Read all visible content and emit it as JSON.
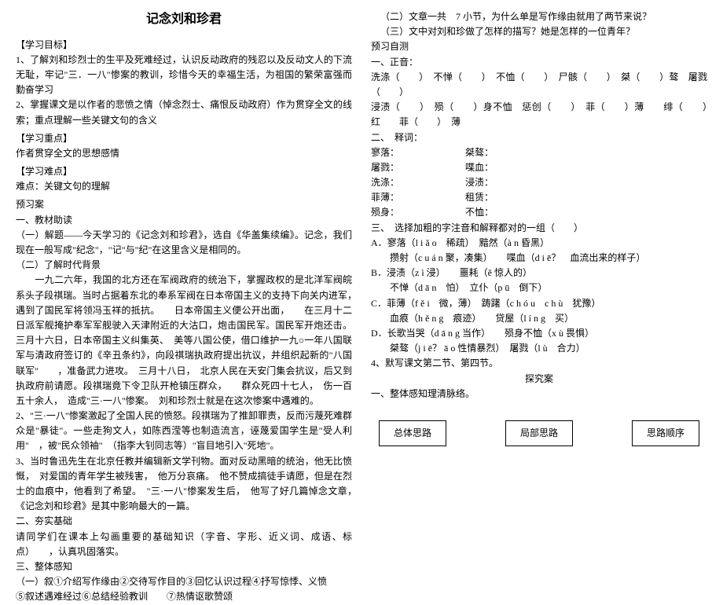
{
  "title": "记念刘和珍君",
  "left": {
    "h_objective": "【学习目标】",
    "obj1": "1、了解刘和珍烈士的生平及死难经过，认识反动政府的残忍以及反动文人的下流无耻，牢记\"三．一八\"惨案的教训，珍惜今天的幸福生活，为祖国的繁荣富强而勤奋学习",
    "obj2": "2、掌握课文是以作者的悲愤之情（悼念烈士、痛恨反动政府）作为贯穿全文的线索；重点理解一些关键文句的含义",
    "h_focus": "【学习重点】",
    "focus": "作者贯穿全文的思想感情",
    "h_diff": "【学习难点】",
    "diff": "难点：关键文句的理解",
    "h_preview": "预习案",
    "h_material": "一、教材助读",
    "mat1": "（一）解题——今天学习的《记念刘和珍君》，选自《华盖集续编》。记念，我们现在一般写成\"纪念\"，\"记\"与\"纪\"在这里含义是相同的。",
    "mat2": "（二）了解时代背景",
    "bg1": "　　一九二六年，我国的北方还在军阀政府的统治下，掌握政权的是北洋军阀皖系头子段祺瑞。当时占据着东北的奉系军阀在日本帝国主义的支持下向关内进军，　　遇到了国民军将领冯玉祥的抵抗。　　日本帝国主义便公开出面，　　在三月十二日派军舰掩护奉军军舰驶入天津附近的大沽口，炮击国民军。国民军开炮还击。三月十六日，日本帝国主义纠集英、　美等八国公使，借口维护一九○一年八国联军与清政府签订的《辛丑条约》，向段祺瑞执政府提出抗议，并组织起新的\"八国联军\"　　，准备武力进攻。　三月十八日，　北京人民在天安门集会抗议，后又到执政府前请愿。段祺瑞竟下令卫队开枪镇压群众，　　群众死四十七人，　伤一百五十余人，　造成\"三·一八\"惨案。　刘和珍烈士就是在这次惨案中遇难的。",
    "bg2": "2、\"三·一八\"惨案激起了全国人民的愤怒。段祺瑞为了推卸罪责，反而污蔑死难群众是\"暴徒\"。一些走狗文人，如陈西滢等也制造流言，诬蔑爱国学生是\"受人利用\"　，被\"民众领袖\"　（指李大钊同志等）\"盲目地引入\"死地\"。",
    "bg3": "3、当时鲁迅先生在北京任教并编辑新文学刊物。面对反动黑暗的统治，他无比愤慨，　对爱国的青年学生被残害，　他万分哀痛。　他不赞成搞徒手请愿，但是在烈士的血痕中，他看到了希望。　\"三·一八\"惨案发生后，　他写了好几篇悼念文章，　《记念刘和珍君》是其中影响最大的一篇。",
    "h_basis": "二、夯实基础",
    "basis": "请同学们在课本上勾画重要的基础知识（字音、字形、近义词、成语、标点）　　，认真巩固落实。",
    "h_whole": "三、整体感知",
    "whole1": "（一）叙①介绍写作缘由②交待写作目的③回忆认识过程④抒写惊悸、义愤",
    "whole2": "⑤叙述遇难经过⑥总结经验教训　　⑦热情讴歌赞颂"
  },
  "right": {
    "q2": "（二）文章一共　7 小节，为什么单是写作缘由就用了两节来说？",
    "q3": "（三）文中对刘和珍做了怎样的描写？她是怎样的一位青年？",
    "h_selftest": "预习自测",
    "h_pron": "一、正音：",
    "pron1": "洗涤（　　）　不惮（　　）　不恤（　　）　尸骸（　　）　桀（　　）骜　屠戮（　　）",
    "pron2": "浸渍（　　）　殒（　　）身不恤　惩创（　　）　菲（　　）薄　　绯（　　）　红　　菲（　　）　薄",
    "h_explain": "二、　释词：",
    "e1a": "寥落：",
    "e1b": "桀骜：",
    "e2a": "屠戮：",
    "e2b": "喋血：",
    "e3a": "洗涤：",
    "e3b": "浸渍：",
    "e4a": "菲薄：",
    "e4b": "租赁：",
    "e5a": "殒身：",
    "e5b": "不恤：",
    "h_choice": "三、　选择加粗的字注音和解释都对的一组（　　）",
    "cA1": "A．寥落（l i ǎ o　稀疏）　黯然（à n 昏黑）",
    "cA2": "　　攒射（c u á n 聚，凑集）　　喋血（d i ē？　血流出来的样子）",
    "cB1": "B．浸渍（z ì 浸）　　噩耗（ě 惊人的）",
    "cB2": "　　不惮（d ā n　怕）　立仆（p ū　倒下）",
    "cC1": "C．菲薄（f ě i　微，薄）　踌躇（c h ó u　c h ù　犹豫）",
    "cC2": "　　血痕（h ě n g　痕迹）　　贷屋（l í n g　买）",
    "cD1": "D．长歌当哭（d ā n g 当作）　　殒身不恤（x ù 畏惧）",
    "cD2": "　　桀骜（j i ē？ ā o 性情暴烈）　屠戮（l ù　合力）",
    "h_silent": "4、默写课文第二节、第四节。",
    "h_explore": "探究案",
    "h_overall": "一、整体感知理清脉络。",
    "box1": "总体思路",
    "box2": "局部思路",
    "box3": "思路顺序"
  }
}
